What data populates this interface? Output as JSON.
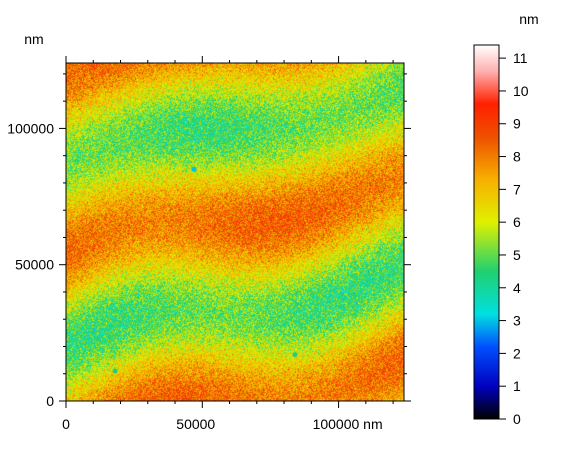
{
  "chart_data": {
    "type": "heatmap",
    "title": "",
    "xlabel": "",
    "ylabel": "",
    "x_unit": "nm",
    "y_unit": "nm",
    "xlim": [
      0,
      124000
    ],
    "ylim": [
      0,
      124000
    ],
    "x_ticks": [
      0,
      50000,
      100000
    ],
    "x_tick_labels": [
      "0",
      "50000",
      "100000 nm"
    ],
    "y_ticks": [
      0,
      50000,
      100000
    ],
    "y_tick_labels": [
      "0",
      "50000",
      "100000"
    ],
    "colorbar": {
      "unit": "nm",
      "range": [
        0,
        11.4
      ],
      "ticks": [
        0,
        1,
        2,
        3,
        4,
        5,
        6,
        7,
        8,
        9,
        10,
        11
      ],
      "tick_labels": [
        "0",
        "1",
        "2",
        "3",
        "4",
        "5",
        "6",
        "7",
        "8",
        "9",
        "10",
        "11"
      ],
      "colormap_stops": [
        {
          "v": 0,
          "color": "#000000"
        },
        {
          "v": 1,
          "color": "#0000c0"
        },
        {
          "v": 2.2,
          "color": "#0050ff"
        },
        {
          "v": 3.2,
          "color": "#00e0e0"
        },
        {
          "v": 4.5,
          "color": "#20d070"
        },
        {
          "v": 6,
          "color": "#e0f000"
        },
        {
          "v": 7.3,
          "color": "#f6b000"
        },
        {
          "v": 8.6,
          "color": "#ee5000"
        },
        {
          "v": 9.6,
          "color": "#ff2000"
        },
        {
          "v": 10.6,
          "color": "#ffb0b0"
        },
        {
          "v": 11.4,
          "color": "#ffffff"
        }
      ]
    },
    "surface_description": "Wavy surface: diagonal bands of higher height (~7-9 nm) alternating with valleys (~4-5 nm); noisy texture",
    "features": [
      {
        "x": 47000,
        "y": 85000,
        "height": 3.0
      },
      {
        "x": 18000,
        "y": 11000,
        "height": 4.3
      },
      {
        "x": 84000,
        "y": 17000,
        "height": 4.3
      }
    ]
  }
}
